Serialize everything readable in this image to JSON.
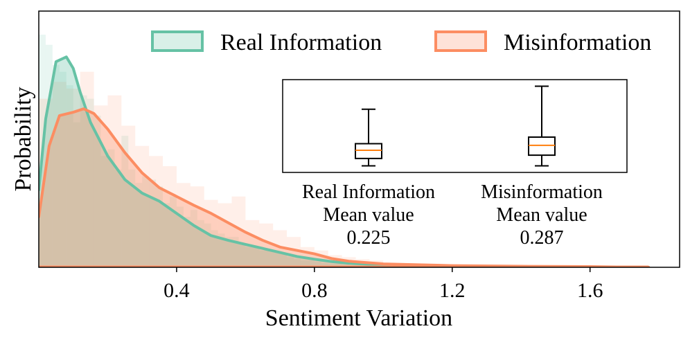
{
  "chart_data": {
    "type": "area",
    "title": "",
    "xlabel": "Sentiment Variation",
    "ylabel": "Probability",
    "xlim": [
      0.0,
      1.86
    ],
    "ylim": [
      0,
      3.8
    ],
    "xticks": [
      0.4,
      0.8,
      1.2,
      1.6
    ],
    "xtick_labels": [
      "0.4",
      "0.8",
      "1.2",
      "1.6"
    ],
    "legend": {
      "placement": "top-right",
      "entries": [
        "Real Information",
        "Misinformation"
      ]
    },
    "series": [
      {
        "name": "Real Information",
        "color": "#66c2a5",
        "hist_bin_width": 0.02,
        "hist_values": [
          3.45,
          3.3,
          3.0,
          2.9,
          2.7,
          2.15,
          2.55,
          2.5,
          2.25,
          1.65,
          1.75,
          1.45,
          1.95,
          1.45,
          1.25,
          1.35,
          1.3,
          1.2,
          0.95,
          1.05,
          0.9,
          0.75,
          0.85,
          0.7,
          0.65,
          0.55,
          0.5,
          0.45,
          0.45,
          0.35,
          0.3,
          0.3,
          0.25,
          0.25,
          0.22,
          0.2,
          0.15,
          0.12,
          0.1,
          0.1,
          0.08,
          0.06,
          0.05,
          0.05,
          0.04,
          0.03,
          0.03,
          0.02,
          0.02,
          0.02
        ],
        "kde_x": [
          0.0,
          0.02,
          0.05,
          0.08,
          0.1,
          0.12,
          0.15,
          0.2,
          0.25,
          0.3,
          0.35,
          0.4,
          0.45,
          0.5,
          0.55,
          0.6,
          0.65,
          0.7,
          0.75,
          0.8,
          0.85,
          0.9,
          1.0,
          1.1,
          1.2,
          1.4,
          1.6,
          1.77
        ],
        "kde_y": [
          1.15,
          2.2,
          3.05,
          3.12,
          2.95,
          2.6,
          2.15,
          1.65,
          1.3,
          1.1,
          0.98,
          0.8,
          0.62,
          0.47,
          0.4,
          0.34,
          0.28,
          0.22,
          0.16,
          0.12,
          0.085,
          0.06,
          0.035,
          0.02,
          0.012,
          0.006,
          0.003,
          0.0
        ]
      },
      {
        "name": "Misinformation",
        "color": "#fc8d62",
        "hist_bin_width": 0.04,
        "hist_values": [
          2.5,
          2.75,
          2.65,
          2.9,
          2.4,
          2.55,
          2.1,
          1.8,
          1.65,
          1.5,
          1.25,
          1.2,
          1.0,
          0.95,
          1.05,
          0.7,
          0.65,
          0.55,
          0.45,
          0.3,
          0.25,
          0.18,
          0.15,
          0.12,
          0.1
        ],
        "kde_x": [
          0.0,
          0.03,
          0.06,
          0.1,
          0.13,
          0.16,
          0.2,
          0.25,
          0.3,
          0.35,
          0.4,
          0.45,
          0.5,
          0.55,
          0.6,
          0.65,
          0.7,
          0.75,
          0.8,
          0.85,
          0.9,
          1.0,
          1.2,
          1.4,
          1.6,
          1.77
        ],
        "kde_y": [
          0.75,
          1.8,
          2.25,
          2.3,
          2.35,
          2.28,
          2.05,
          1.7,
          1.4,
          1.18,
          1.05,
          0.92,
          0.8,
          0.66,
          0.52,
          0.4,
          0.3,
          0.25,
          0.2,
          0.13,
          0.09,
          0.05,
          0.025,
          0.015,
          0.01,
          0.0
        ]
      }
    ],
    "inset_boxplot": {
      "type": "box",
      "groups": [
        {
          "name": "Real Information",
          "whisker_low": 0.03,
          "q1": 0.12,
          "median": 0.22,
          "q3": 0.3,
          "whisker_high": 0.72,
          "mean_label": "Mean value",
          "mean": "0.225"
        },
        {
          "name": "Misinformation",
          "whisker_low": 0.03,
          "q1": 0.16,
          "median": 0.28,
          "q3": 0.38,
          "whisker_high": 1.0,
          "mean_label": "Mean value",
          "mean": "0.287"
        }
      ],
      "ylim": [
        -0.05,
        1.08
      ],
      "median_color": "#ff7f0e"
    }
  }
}
